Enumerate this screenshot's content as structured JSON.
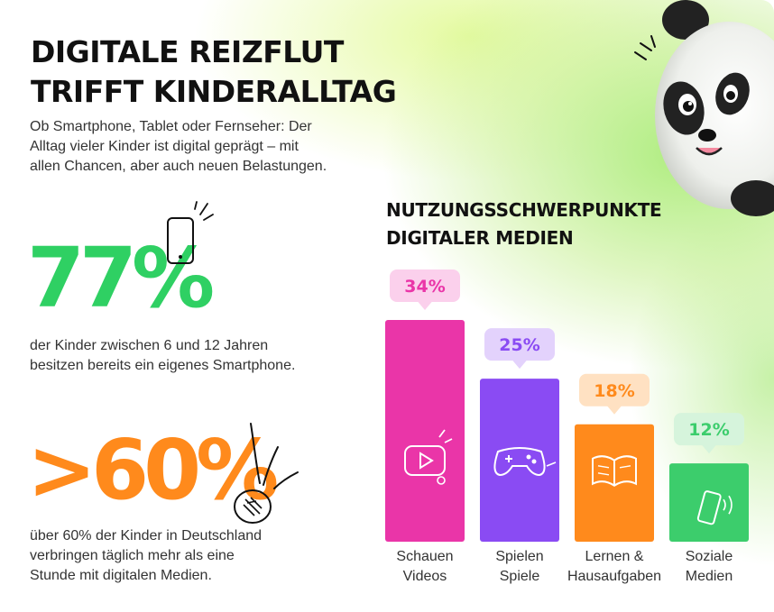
{
  "title": {
    "line1": "DIGITALE REIZFLUT",
    "line2": "TRIFFT KINDERALLTAG"
  },
  "subtitle": {
    "line1": "Ob Smartphone, Tablet oder Fernseher: Der",
    "line2": "Alltag vieler Kinder ist digital geprägt – mit",
    "line3": "allen Chancen, aber auch neuen Belastungen."
  },
  "stats": [
    {
      "value": "77%",
      "color": "#2fd063",
      "icon": "smartphone-doodle-icon",
      "desc1": "der Kinder zwischen 6 und 12 Jahren",
      "desc2": "besitzen bereits ein eigenes Smartphone."
    },
    {
      "value": ">60%",
      "color": "#ff8a1c",
      "icon": "clock-doodle-icon",
      "desc1": "über 60% der Kinder in Deutschland",
      "desc2": "verbringen täglich mehr als eine",
      "desc3": "Stunde mit digitalen Medien."
    }
  ],
  "chart_title": {
    "line1": "NUTZUNGSSCHWERPUNKTE",
    "line2": "DIGITALER MEDIEN"
  },
  "chart_data": {
    "type": "bar",
    "title": "NUTZUNGSSCHWERPUNKTE DIGITALER MEDIEN",
    "categories": [
      [
        "Schauen",
        "Videos"
      ],
      [
        "Spielen",
        "Spiele"
      ],
      [
        "Lernen &",
        "Hausaufgaben"
      ],
      [
        "Soziale",
        "Medien"
      ]
    ],
    "values": [
      34,
      25,
      18,
      12
    ],
    "value_labels": [
      "34%",
      "25%",
      "18%",
      "12%"
    ],
    "unit": "%",
    "colors": [
      "#ea35a8",
      "#8a4bf3",
      "#ff8a1c",
      "#3ccd6c"
    ],
    "badge_colors": [
      "#fbd0ec",
      "#e3d2fc",
      "#ffe1c2",
      "#d6f4dc"
    ],
    "icons": [
      "video-play-icon",
      "gamepad-icon",
      "open-book-icon",
      "smartphone-icon"
    ],
    "ylim": [
      0,
      34
    ],
    "grid": false,
    "legend": "none"
  }
}
